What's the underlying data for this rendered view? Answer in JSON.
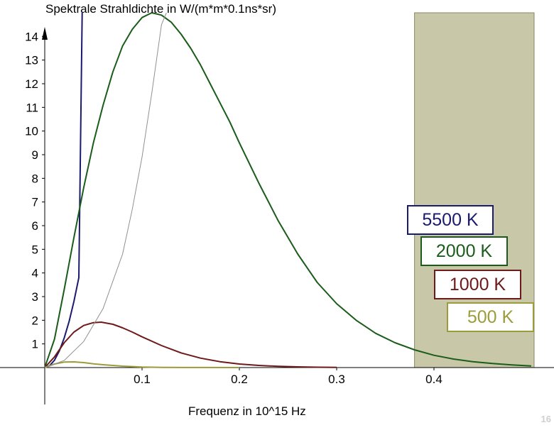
{
  "chart_data": {
    "type": "line",
    "title": "",
    "ylabel": "Spektrale Strahldichte in W/(m*m*0.1ns*sr)",
    "xlabel": "Frequenz in 10^15 Hz",
    "xlim": [
      0,
      0.5
    ],
    "ylim": [
      0,
      15
    ],
    "xticks": [
      "0.1",
      "0.2",
      "0.3",
      "0.4"
    ],
    "yticks": [
      "1",
      "2",
      "3",
      "4",
      "5",
      "6",
      "7",
      "8",
      "9",
      "10",
      "11",
      "12",
      "13",
      "14"
    ],
    "shaded_region": {
      "x_from": 0.38,
      "x_to": 0.5,
      "color": "#c8c8a8"
    },
    "series": [
      {
        "name": "5500 K",
        "color": "#1a1a6e",
        "x": [
          0,
          0.005,
          0.01,
          0.015,
          0.02,
          0.025,
          0.03,
          0.035,
          0.0385
        ],
        "y": [
          0,
          0.08,
          0.31,
          0.7,
          1.25,
          1.95,
          2.8,
          3.8,
          15
        ]
      },
      {
        "name": "2000 K",
        "color": "#1a5c1a",
        "x": [
          0,
          0.01,
          0.02,
          0.03,
          0.04,
          0.05,
          0.06,
          0.07,
          0.08,
          0.09,
          0.1,
          0.11,
          0.12,
          0.13,
          0.14,
          0.15,
          0.16,
          0.17,
          0.18,
          0.19,
          0.2,
          0.22,
          0.24,
          0.26,
          0.28,
          0.3,
          0.32,
          0.34,
          0.36,
          0.38,
          0.4,
          0.42,
          0.44,
          0.46,
          0.48,
          0.5
        ],
        "y": [
          0,
          1.2,
          3.3,
          5.5,
          7.6,
          9.5,
          11.1,
          12.5,
          13.6,
          14.3,
          14.8,
          15.0,
          14.9,
          14.6,
          14.1,
          13.5,
          12.8,
          12.0,
          11.2,
          10.4,
          9.5,
          7.8,
          6.2,
          4.8,
          3.6,
          2.7,
          2.0,
          1.45,
          1.05,
          0.75,
          0.52,
          0.36,
          0.25,
          0.17,
          0.11,
          0.07
        ]
      },
      {
        "name": "1000 K",
        "color": "#6e1a1a",
        "x": [
          0,
          0.01,
          0.02,
          0.03,
          0.04,
          0.05,
          0.058,
          0.07,
          0.08,
          0.09,
          0.1,
          0.12,
          0.14,
          0.16,
          0.18,
          0.2,
          0.22,
          0.24,
          0.26,
          0.28,
          0.3
        ],
        "y": [
          0,
          0.45,
          1.05,
          1.5,
          1.78,
          1.9,
          1.92,
          1.83,
          1.68,
          1.5,
          1.3,
          0.93,
          0.62,
          0.4,
          0.25,
          0.15,
          0.09,
          0.05,
          0.03,
          0.015,
          0.008
        ]
      },
      {
        "name": "500 K",
        "color": "#9c9c3c",
        "x": [
          0,
          0.01,
          0.02,
          0.03,
          0.04,
          0.05,
          0.06,
          0.08,
          0.1,
          0.12,
          0.14,
          0.16,
          0.2
        ],
        "y": [
          0,
          0.15,
          0.23,
          0.24,
          0.21,
          0.16,
          0.12,
          0.06,
          0.025,
          0.01,
          0.004,
          0.002,
          0.0
        ]
      },
      {
        "name": "",
        "color": "#909090",
        "x": [
          0,
          0.02,
          0.04,
          0.06,
          0.08,
          0.09,
          0.1,
          0.11,
          0.12,
          0.125
        ],
        "y": [
          0,
          0.3,
          1.1,
          2.5,
          4.8,
          6.7,
          8.9,
          11.6,
          14.5,
          15
        ]
      }
    ]
  },
  "legend": [
    {
      "label": "5500  K",
      "color": "#1a1a6e"
    },
    {
      "label": "2000  K",
      "color": "#1a5c1a"
    },
    {
      "label": "1000  K",
      "color": "#6e1a1a"
    },
    {
      "label": "500  K",
      "color": "#9c9c3c"
    }
  ],
  "page_number": "16"
}
